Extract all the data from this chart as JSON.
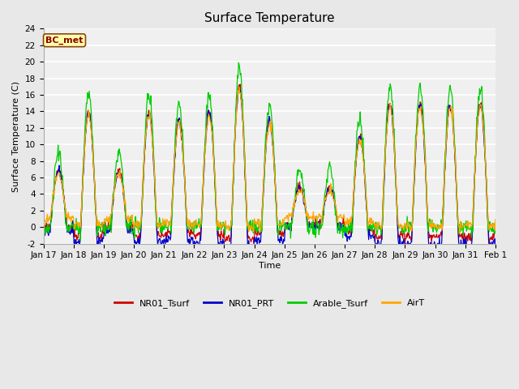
{
  "title": "Surface Temperature",
  "xlabel": "Time",
  "ylabel": "Surface Temperature (C)",
  "ylim": [
    -2,
    24
  ],
  "yticks": [
    -2,
    0,
    2,
    4,
    6,
    8,
    10,
    12,
    14,
    16,
    18,
    20,
    22,
    24
  ],
  "xtick_labels": [
    "Jan 17",
    "Jan 18",
    "Jan 19",
    "Jan 20",
    "Jan 21",
    "Jan 22",
    "Jan 23",
    "Jan 24",
    "Jan 25",
    "Jan 26",
    "Jan 27",
    "Jan 28",
    "Jan 29",
    "Jan 30",
    "Jan 31",
    "Feb 1"
  ],
  "legend_labels": [
    "NR01_Tsurf",
    "NR01_PRT",
    "Arable_Tsurf",
    "AirT"
  ],
  "legend_colors": [
    "#cc0000",
    "#0000cc",
    "#00cc00",
    "#ffa500"
  ],
  "line_colors": [
    "#cc0000",
    "#0000cc",
    "#00cc00",
    "#ffa500"
  ],
  "annotation_text": "BC_met",
  "annotation_color": "#8B0000",
  "annotation_bg": "#ffffaa",
  "background_color": "#e8e8e8",
  "plot_bg_color": "#f0f0f0",
  "title_fontsize": 11,
  "label_fontsize": 8,
  "tick_fontsize": 7.5
}
